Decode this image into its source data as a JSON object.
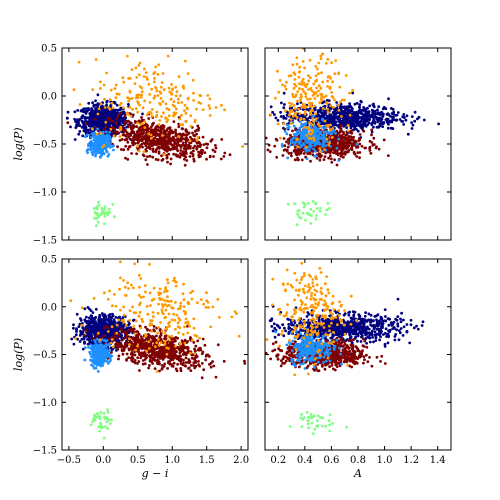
{
  "chart_data": {
    "type": "scatter",
    "layout": "2x2 grid, shared y axis per row, shared x axis per column",
    "ylabel": "log(P)",
    "xlabels": {
      "left": "g − i",
      "right": "A"
    },
    "x_ticks_left": [
      "−0.5",
      "0.0",
      "0.5",
      "1.0",
      "1.5",
      "2.0"
    ],
    "x_ticks_right": [
      "0.2",
      "0.4",
      "0.6",
      "0.8",
      "1.0",
      "1.2",
      "1.4"
    ],
    "y_ticks": [
      "0.5",
      "0.0",
      "−0.5",
      "−1.0",
      "−1.5"
    ],
    "xlim_left": [
      -0.6,
      2.1
    ],
    "xlim_right": [
      0.1,
      1.5
    ],
    "ylim": [
      -1.5,
      0.5
    ],
    "grid": false,
    "legend": "none",
    "series_colors": [
      "#00007f",
      "#7f0000",
      "#1e90ff",
      "#ff9900",
      "#7fff7f"
    ],
    "clusters": {
      "left": [
        {
          "color": "#00007f",
          "cx": 0.0,
          "cy": -0.25,
          "sx": 0.18,
          "sy": 0.08,
          "n": 700
        },
        {
          "color": "#7f0000",
          "cx": 0.8,
          "cy": -0.45,
          "sx": 0.35,
          "sy": 0.09,
          "n": 650
        },
        {
          "color": "#1e90ff",
          "cx": -0.05,
          "cy": -0.5,
          "sx": 0.07,
          "sy": 0.06,
          "n": 260
        },
        {
          "color": "#ff9900",
          "cx": 0.75,
          "cy": -0.05,
          "sx": 0.45,
          "sy": 0.22,
          "n": 220
        },
        {
          "color": "#7fff7f",
          "cx": -0.03,
          "cy": -1.2,
          "sx": 0.07,
          "sy": 0.07,
          "n": 35
        }
      ],
      "right": [
        {
          "color": "#00007f",
          "cx": 0.68,
          "cy": -0.22,
          "sx": 0.22,
          "sy": 0.07,
          "n": 700
        },
        {
          "color": "#7f0000",
          "cx": 0.55,
          "cy": -0.5,
          "sx": 0.15,
          "sy": 0.07,
          "n": 650
        },
        {
          "color": "#1e90ff",
          "cx": 0.45,
          "cy": -0.43,
          "sx": 0.08,
          "sy": 0.08,
          "n": 260
        },
        {
          "color": "#ff9900",
          "cx": 0.45,
          "cy": -0.05,
          "sx": 0.12,
          "sy": 0.22,
          "n": 220
        },
        {
          "color": "#7fff7f",
          "cx": 0.45,
          "cy": -1.2,
          "sx": 0.08,
          "sy": 0.06,
          "n": 35
        }
      ]
    }
  }
}
